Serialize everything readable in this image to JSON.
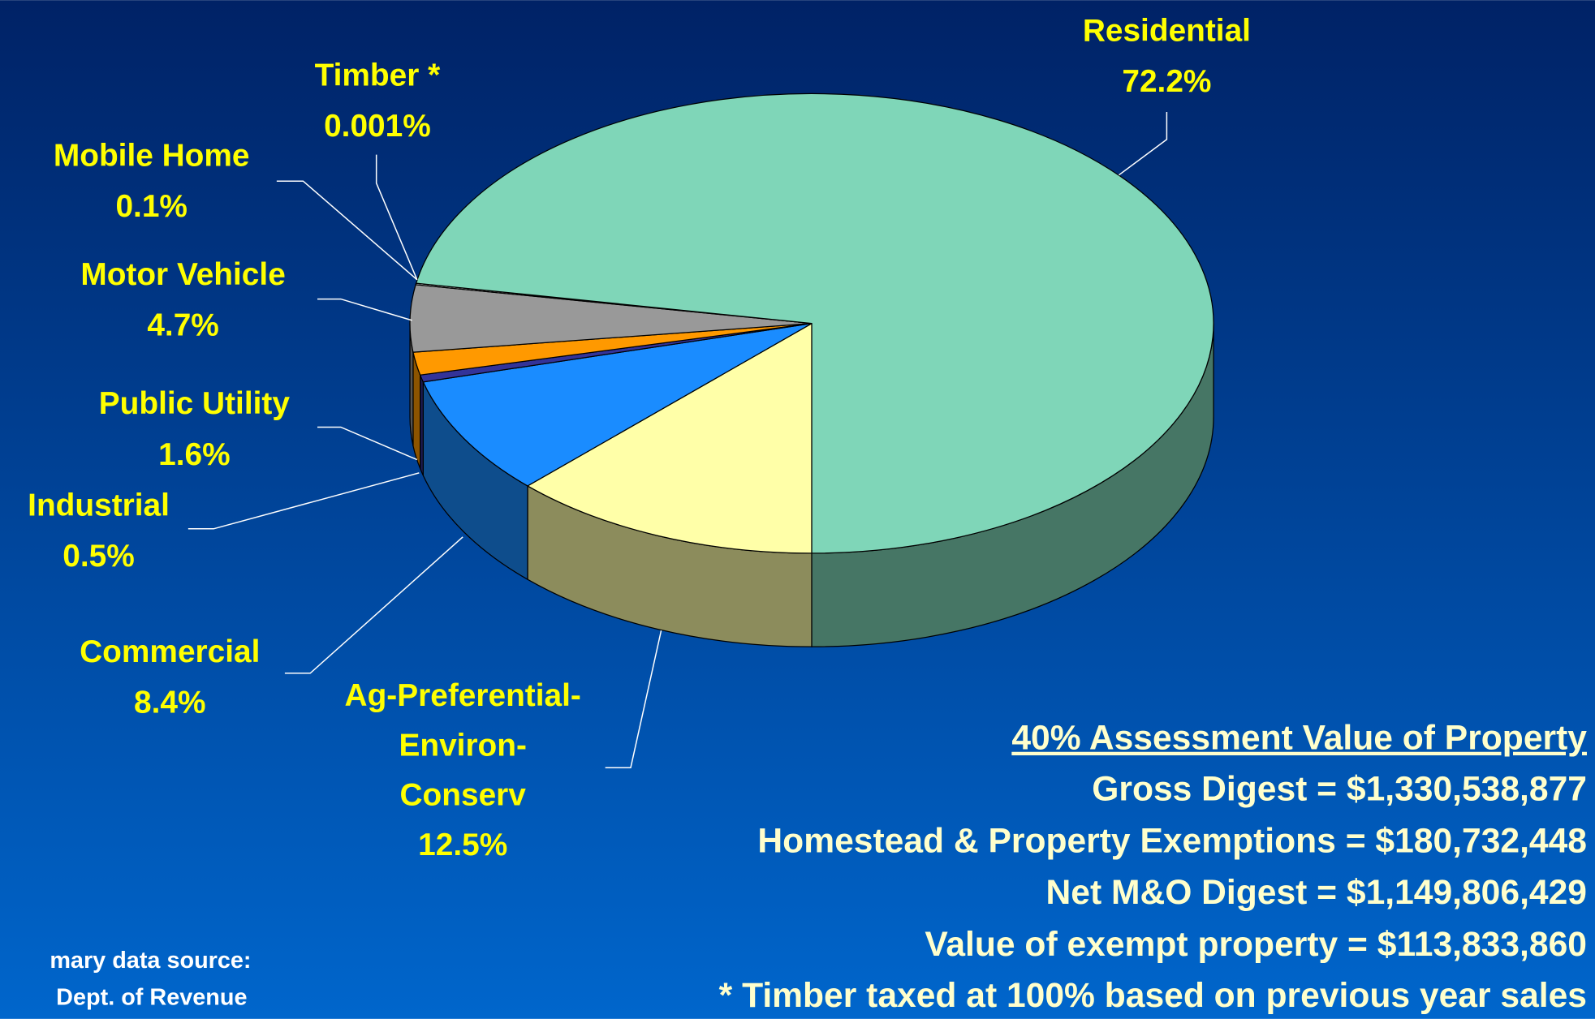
{
  "chart_data": {
    "type": "pie3d",
    "categories": [
      [
        "Ag-Preferential-",
        "Environ-",
        "Conserv"
      ],
      [
        "Commercial"
      ],
      [
        "Industrial"
      ],
      [
        "Public Utility"
      ],
      [
        "Motor Vehicle"
      ],
      [
        "Mobile Home"
      ],
      [
        "Timber *"
      ],
      [
        "Residential"
      ]
    ],
    "values": [
      12.5,
      8.4,
      0.5,
      1.6,
      4.7,
      0.1,
      0.001,
      72.2
    ],
    "value_labels": [
      "12.5%",
      "8.4%",
      "0.5%",
      "1.6%",
      "4.7%",
      "0.1%",
      "0.001%",
      "72.2%"
    ],
    "colors": [
      "#ffffa8",
      "#1a8cff",
      "#333399",
      "#ff9900",
      "#999999",
      "#dddddd",
      "#cccccc",
      "#7fd6b8"
    ],
    "annotations": [
      "40% Assessment Value of Property",
      "Gross Digest = $1,330,538,877",
      "Homestead & Property Exemptions = $180,732,448",
      "Net M&O Digest = $1,149,806,429",
      "Value of exempt property = $113,833,860",
      "* Timber taxed at 100% based on previous year sales"
    ],
    "source": [
      "mary data source:",
      "Dept. of Revenue"
    ]
  }
}
